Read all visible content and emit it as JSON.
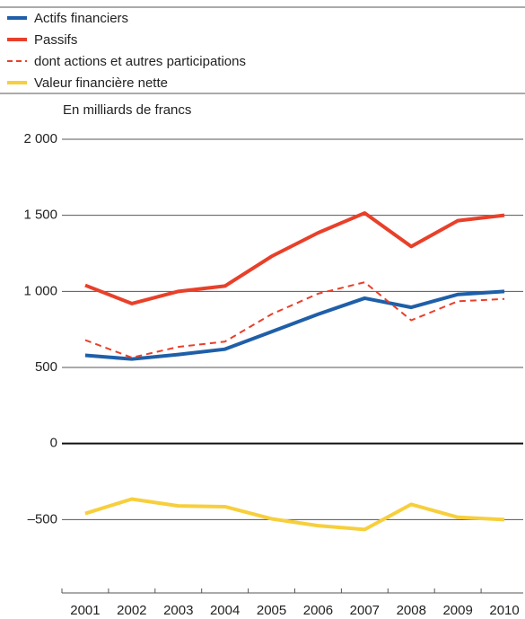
{
  "chart_data": {
    "type": "line",
    "y_label": "En milliards de francs",
    "categories": [
      "2001",
      "2002",
      "2003",
      "2004",
      "2005",
      "2006",
      "2007",
      "2008",
      "2009",
      "2010"
    ],
    "series": [
      {
        "name": "Actifs financiers",
        "color": "#1f5fa8",
        "values": [
          580,
          555,
          585,
          620,
          735,
          850,
          955,
          895,
          980,
          1000
        ]
      },
      {
        "name": "Passifs",
        "color": "#e8402a",
        "values": [
          1040,
          920,
          1000,
          1035,
          1230,
          1385,
          1515,
          1295,
          1465,
          1500
        ]
      },
      {
        "name": "dont actions et autres participations",
        "color": "#e8402a",
        "dash": true,
        "values": [
          680,
          565,
          635,
          670,
          850,
          985,
          1060,
          810,
          935,
          950
        ]
      },
      {
        "name": "Valeur financière nette",
        "color": "#f7cf3c",
        "values": [
          -460,
          -365,
          -410,
          -415,
          -495,
          -540,
          -565,
          -400,
          -485,
          -500
        ]
      }
    ],
    "ylim": [
      -1000,
      2000
    ],
    "yticks": [
      {
        "value": 2000,
        "label": "2 000"
      },
      {
        "value": 1500,
        "label": "1 500"
      },
      {
        "value": 1000,
        "label": "1 000"
      },
      500,
      0,
      {
        "value": -500,
        "label": "–500"
      }
    ],
    "grid": true
  }
}
